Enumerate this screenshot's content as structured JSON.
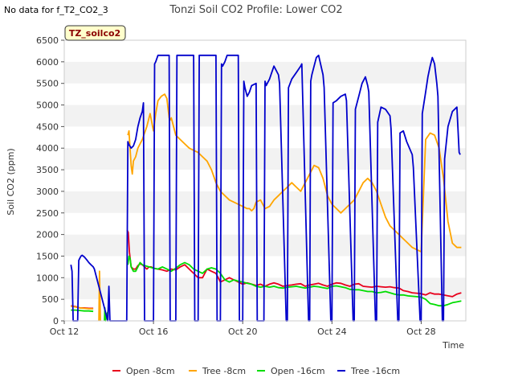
{
  "no_data_note": "No data for f_T2_CO2_3",
  "chart_data": {
    "type": "line",
    "title": "Tonzi Soil CO2 Profile: Lower CO2",
    "xlabel": "Time",
    "ylabel": "Soil CO2 (ppm)",
    "badge": "TZ_soilco2",
    "xlim": [
      12,
      30
    ],
    "ylim": [
      0,
      6500
    ],
    "yticks": [
      0,
      500,
      1000,
      1500,
      2000,
      2500,
      3000,
      3500,
      4000,
      4500,
      5000,
      5500,
      6000,
      6500
    ],
    "xticks": [
      {
        "value": 12,
        "label": "Oct 12"
      },
      {
        "value": 16,
        "label": "Oct 16"
      },
      {
        "value": 20,
        "label": "Oct 20"
      },
      {
        "value": 24,
        "label": "Oct 24"
      },
      {
        "value": 28,
        "label": "Oct 28"
      }
    ],
    "grid": "horizontal bands",
    "legend_position": "bottom",
    "series": [
      {
        "name": "Open -8cm",
        "color": "#e8001c",
        "x": [
          12.3,
          12.5,
          12.7,
          12.9,
          13.1,
          13.3,
          13.3,
          14.82,
          14.87,
          14.92,
          15.0,
          15.1,
          15.2,
          15.3,
          15.4,
          15.5,
          15.6,
          15.7,
          15.8,
          15.9,
          16.0,
          16.2,
          16.4,
          16.6,
          16.8,
          17.0,
          17.2,
          17.4,
          17.6,
          17.8,
          18.0,
          18.2,
          18.4,
          18.6,
          18.8,
          19.0,
          19.2,
          19.4,
          19.6,
          19.8,
          20.0,
          20.2,
          20.4,
          20.6,
          20.8,
          21.0,
          21.2,
          21.4,
          21.6,
          21.8,
          22.0,
          22.2,
          22.4,
          22.6,
          22.8,
          23.0,
          23.2,
          23.4,
          23.6,
          23.8,
          24.0,
          24.2,
          24.4,
          24.6,
          24.8,
          25.0,
          25.2,
          25.4,
          25.6,
          25.8,
          26.0,
          26.2,
          26.4,
          26.6,
          26.8,
          27.0,
          27.2,
          27.4,
          27.6,
          27.8,
          28.0,
          28.2,
          28.4,
          28.6,
          28.8,
          29.0,
          29.2,
          29.4,
          29.6,
          29.8
        ],
        "y": [
          350,
          330,
          300,
          300,
          290,
          290,
          null,
          2100,
          2050,
          1600,
          1250,
          1200,
          1200,
          1280,
          1320,
          1300,
          1250,
          1200,
          1250,
          1250,
          1220,
          1200,
          1180,
          1150,
          1200,
          1180,
          1250,
          1300,
          1200,
          1100,
          1000,
          1000,
          1200,
          1150,
          1100,
          900,
          950,
          1000,
          950,
          900,
          850,
          880,
          850,
          820,
          850,
          800,
          850,
          880,
          850,
          800,
          820,
          830,
          850,
          860,
          800,
          830,
          850,
          870,
          830,
          800,
          850,
          880,
          870,
          830,
          800,
          850,
          860,
          800,
          790,
          780,
          800,
          790,
          780,
          790,
          770,
          760,
          700,
          680,
          650,
          640,
          630,
          600,
          650,
          620,
          620,
          600,
          580,
          560,
          620,
          650
        ]
      },
      {
        "name": "Tree -8cm",
        "color": "#ffa500",
        "x": [
          12.3,
          12.5,
          12.7,
          12.9,
          13.1,
          13.3,
          13.3,
          13.55,
          13.58,
          13.62,
          14.8,
          14.85,
          14.9,
          14.95,
          15.0,
          15.05,
          15.1,
          15.2,
          15.3,
          15.4,
          15.5,
          15.7,
          15.85,
          16.0,
          16.1,
          16.2,
          16.35,
          16.5,
          16.6,
          16.7,
          16.75,
          16.8,
          16.9,
          17.0,
          17.2,
          17.4,
          17.6,
          17.8,
          18.0,
          18.2,
          18.4,
          18.6,
          18.8,
          19.0,
          19.2,
          19.4,
          19.6,
          19.8,
          20.0,
          20.2,
          20.3,
          20.4,
          20.5,
          20.6,
          20.8,
          21.0,
          21.2,
          21.4,
          21.6,
          21.8,
          22.0,
          22.2,
          22.4,
          22.6,
          22.8,
          23.0,
          23.2,
          23.4,
          23.6,
          23.8,
          24.0,
          24.2,
          24.4,
          24.6,
          24.8,
          25.0,
          25.2,
          25.4,
          25.6,
          25.8,
          26.0,
          26.2,
          26.4,
          26.6,
          26.8,
          27.0,
          27.2,
          27.4,
          27.6,
          27.8,
          28.0,
          28.2,
          28.4,
          28.6,
          28.8,
          29.0,
          29.2,
          29.4,
          29.6,
          29.8
        ],
        "y": [
          340,
          320,
          300,
          290,
          280,
          280,
          null,
          0,
          1150,
          0,
          null,
          4300,
          4400,
          4000,
          3600,
          3400,
          3700,
          3800,
          4000,
          4100,
          4200,
          4500,
          4800,
          4400,
          4800,
          5100,
          5200,
          5250,
          5150,
          4700,
          4650,
          4700,
          4500,
          4300,
          4200,
          4100,
          4000,
          3950,
          3900,
          3800,
          3700,
          3500,
          3200,
          3000,
          2900,
          2800,
          2750,
          2700,
          2650,
          2600,
          2600,
          2550,
          2600,
          2750,
          2800,
          2600,
          2650,
          2800,
          2900,
          3000,
          3100,
          3200,
          3100,
          3000,
          3200,
          3400,
          3600,
          3550,
          3300,
          2900,
          2700,
          2600,
          2500,
          2600,
          2700,
          2800,
          3000,
          3200,
          3300,
          3200,
          3000,
          2700,
          2400,
          2200,
          2100,
          2000,
          1900,
          1800,
          1700,
          1650,
          1600,
          4200,
          4350,
          4300,
          4000,
          3300,
          2300,
          1800,
          1700,
          1700
        ]
      },
      {
        "name": "Open -16cm",
        "color": "#00dd00",
        "x": [
          12.3,
          12.5,
          12.7,
          12.9,
          13.1,
          13.3,
          13.3,
          13.8,
          13.82,
          13.85,
          13.9,
          13.95,
          14.0,
          14.8,
          14.85,
          14.9,
          14.95,
          15.0,
          15.1,
          15.2,
          15.3,
          15.4,
          15.5,
          15.6,
          15.8,
          16.0,
          16.2,
          16.4,
          16.6,
          16.8,
          17.0,
          17.2,
          17.4,
          17.6,
          17.8,
          18.0,
          18.2,
          18.4,
          18.6,
          18.8,
          19.0,
          19.2,
          19.4,
          19.6,
          19.8,
          20.0,
          20.2,
          20.4,
          20.6,
          20.8,
          21.0,
          21.2,
          21.4,
          21.6,
          21.8,
          22.0,
          22.2,
          22.4,
          22.6,
          22.8,
          23.0,
          23.2,
          23.4,
          23.6,
          23.8,
          24.0,
          24.2,
          24.4,
          24.6,
          24.8,
          25.0,
          25.2,
          25.4,
          25.6,
          25.8,
          26.0,
          26.2,
          26.4,
          26.6,
          26.8,
          27.0,
          27.2,
          27.4,
          27.6,
          27.8,
          28.0,
          28.2,
          28.4,
          28.6,
          28.8,
          29.0,
          29.2,
          29.4,
          29.6,
          29.8
        ],
        "y": [
          250,
          250,
          240,
          230,
          230,
          220,
          null,
          0,
          300,
          0,
          150,
          200,
          300,
          null,
          1300,
          1500,
          1450,
          1250,
          1150,
          1150,
          1250,
          1350,
          1300,
          1280,
          1250,
          1220,
          1200,
          1250,
          1200,
          1150,
          1220,
          1300,
          1350,
          1300,
          1200,
          1150,
          1100,
          1200,
          1230,
          1200,
          1100,
          950,
          900,
          950,
          920,
          900,
          870,
          850,
          800,
          780,
          800,
          780,
          800,
          770,
          760,
          780,
          790,
          800,
          780,
          760,
          780,
          800,
          790,
          770,
          750,
          800,
          810,
          790,
          770,
          730,
          720,
          720,
          700,
          680,
          680,
          650,
          660,
          680,
          650,
          620,
          600,
          600,
          580,
          570,
          560,
          550,
          500,
          400,
          380,
          350,
          350,
          380,
          420,
          440,
          460
        ]
      },
      {
        "name": "Tree -16cm",
        "color": "#0000cc",
        "x": [
          12.3,
          12.35,
          12.4,
          12.45,
          12.6,
          12.65,
          12.7,
          12.75,
          12.8,
          12.9,
          13.0,
          13.1,
          13.2,
          13.3,
          13.35,
          13.95,
          14.0,
          14.05,
          14.8,
          14.85,
          14.9,
          15.0,
          15.1,
          15.2,
          15.3,
          15.4,
          15.5,
          15.55,
          15.6,
          15.8,
          16.0,
          16.05,
          16.1,
          16.2,
          16.4,
          16.6,
          16.7,
          16.75,
          17.0,
          17.05,
          17.1,
          17.5,
          17.8,
          17.85,
          18.0,
          18.05,
          18.1,
          18.5,
          18.8,
          18.85,
          19.0,
          19.05,
          19.1,
          19.2,
          19.3,
          19.5,
          19.8,
          19.85,
          20.0,
          20.05,
          20.1,
          20.2,
          20.3,
          20.4,
          20.6,
          20.65,
          20.95,
          21.0,
          21.05,
          21.1,
          21.2,
          21.3,
          21.4,
          21.6,
          21.65,
          21.95,
          22.0,
          22.05,
          22.2,
          22.4,
          22.6,
          22.65,
          22.95,
          23.0,
          23.05,
          23.1,
          23.2,
          23.3,
          23.4,
          23.6,
          23.65,
          23.95,
          24.0,
          24.05,
          24.2,
          24.4,
          24.6,
          24.65,
          24.95,
          25.0,
          25.05,
          25.2,
          25.35,
          25.5,
          25.6,
          25.65,
          25.95,
          26.0,
          26.05,
          26.2,
          26.4,
          26.6,
          26.65,
          26.95,
          27.0,
          27.05,
          27.2,
          27.35,
          27.6,
          27.65,
          27.95,
          28.0,
          28.05,
          28.2,
          28.3,
          28.4,
          28.5,
          28.6,
          28.7,
          28.75,
          28.95,
          29.0,
          29.05,
          29.2,
          29.4,
          29.6,
          29.7,
          29.75
        ],
        "y": [
          1300,
          1150,
          0,
          0,
          0,
          1400,
          1450,
          1500,
          1520,
          1480,
          1420,
          1350,
          1300,
          1250,
          1200,
          0,
          800,
          0,
          0,
          4150,
          4080,
          4000,
          4050,
          4200,
          4500,
          4700,
          4850,
          5050,
          0,
          0,
          0,
          5950,
          6000,
          6150,
          6150,
          6150,
          6150,
          0,
          0,
          6150,
          6150,
          6150,
          6150,
          0,
          0,
          6150,
          6150,
          6150,
          6150,
          0,
          0,
          5950,
          5900,
          6000,
          6150,
          6150,
          6150,
          0,
          0,
          5550,
          5400,
          5200,
          5300,
          5450,
          5500,
          0,
          0,
          5550,
          5450,
          5500,
          5600,
          5750,
          5900,
          5700,
          5500,
          0,
          0,
          5400,
          5600,
          5750,
          5900,
          5950,
          0,
          0,
          5550,
          5700,
          5900,
          6100,
          6150,
          5700,
          5400,
          0,
          0,
          5050,
          5100,
          5200,
          5250,
          5100,
          0,
          0,
          4900,
          5200,
          5500,
          5650,
          5450,
          5300,
          0,
          0,
          4600,
          4950,
          4900,
          4750,
          4450,
          0,
          0,
          4350,
          4400,
          4150,
          3850,
          3550,
          0,
          0,
          4800,
          5300,
          5650,
          5900,
          6100,
          5950,
          5500,
          5200,
          0,
          0,
          3750,
          4500,
          4850,
          4950,
          3900,
          3850
        ]
      }
    ]
  }
}
